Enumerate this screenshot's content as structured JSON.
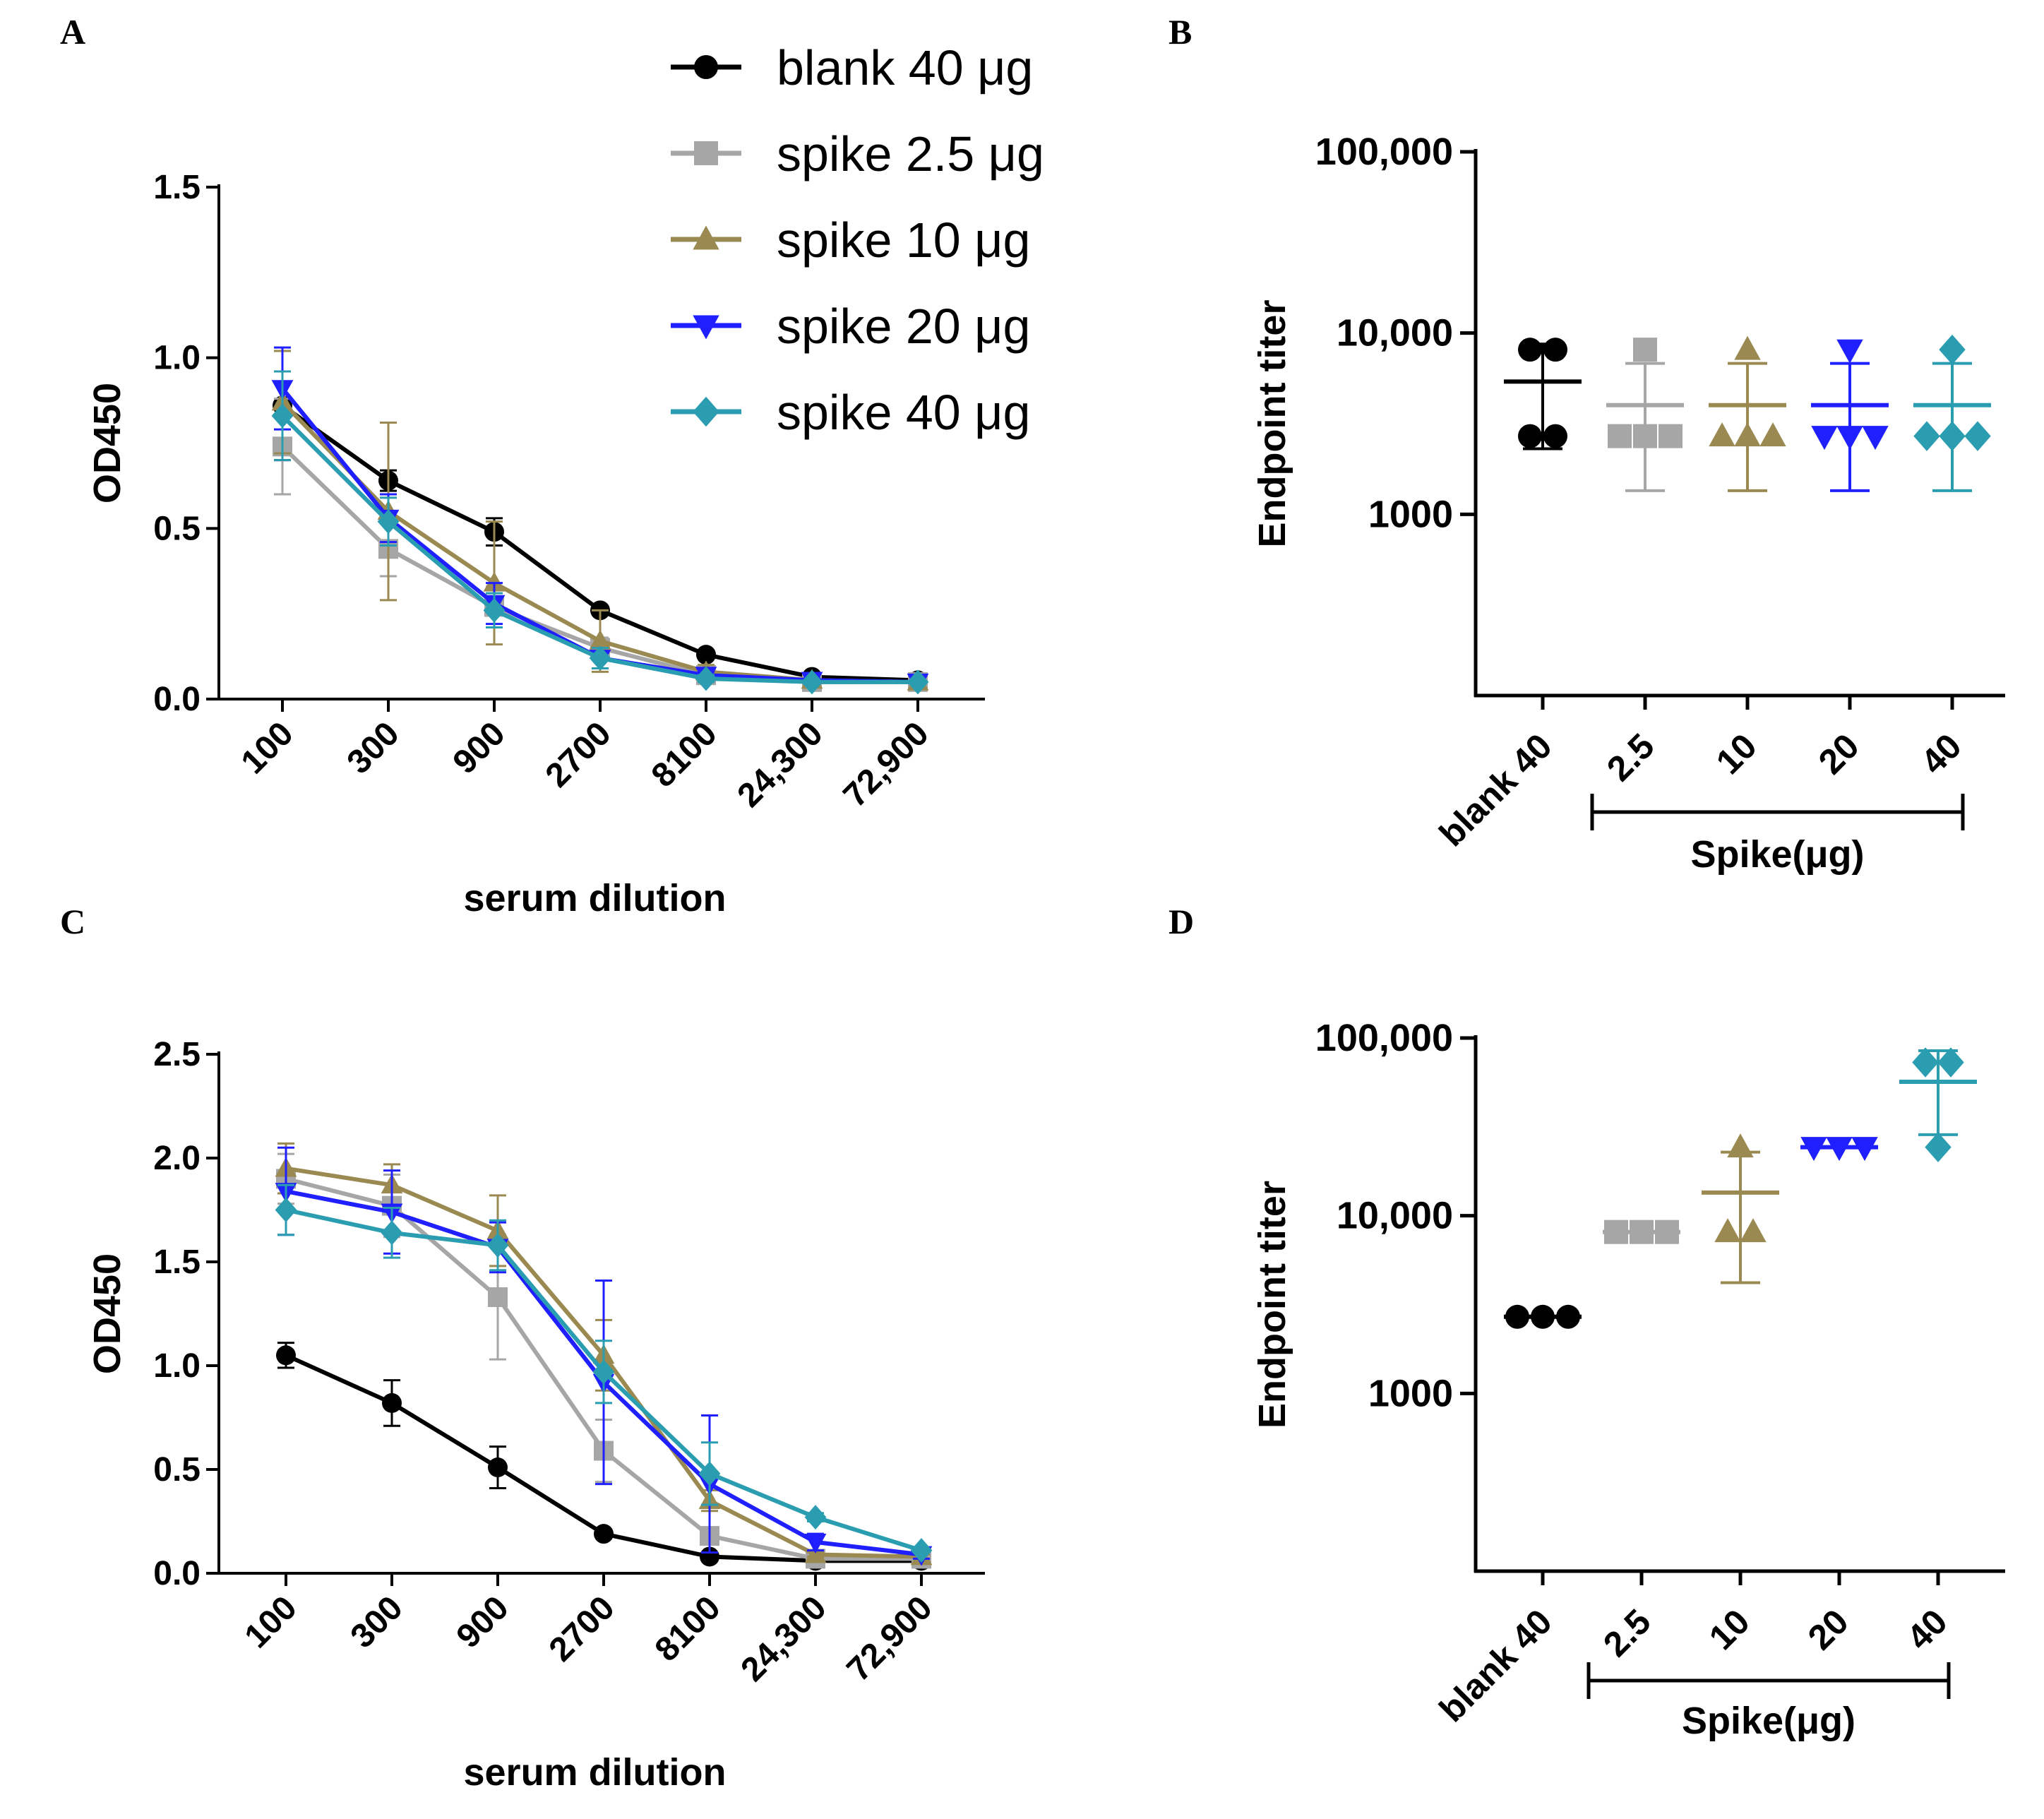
{
  "colors": {
    "blank": "#000000",
    "s25": "#a6a6a6",
    "s10": "#9a8a52",
    "s20": "#1f1fff",
    "s40": "#2a9db0"
  },
  "legend": {
    "entries": [
      {
        "label": "blank 40 μg",
        "key": "blank",
        "marker": "circle"
      },
      {
        "label": "spike 2.5 μg",
        "key": "s25",
        "marker": "square"
      },
      {
        "label": "spike 10 μg",
        "key": "s10",
        "marker": "triangle"
      },
      {
        "label": "spike 20 μg",
        "key": "s20",
        "marker": "tridown"
      },
      {
        "label": "spike 40 μg",
        "key": "s40",
        "marker": "diamond"
      }
    ]
  },
  "chart_data": [
    {
      "panel": "A",
      "type": "line",
      "xlabel": "serum dilution",
      "ylabel": "OD450",
      "categories": [
        "100",
        "300",
        "900",
        "2700",
        "8100",
        "24,300",
        "72,900"
      ],
      "ylim": [
        0,
        1.5
      ],
      "yticks": [
        0,
        0.5,
        1.0,
        1.5
      ],
      "ytick_labels": [
        "0.0",
        "0.5",
        "1.0",
        "1.5"
      ],
      "series": [
        {
          "name": "blank 40 μg",
          "key": "blank",
          "marker": "circle",
          "values": [
            0.86,
            0.64,
            0.49,
            0.26,
            0.13,
            0.065,
            0.055
          ],
          "errors": [
            0.16,
            0.03,
            0.04,
            0.01,
            0.01,
            0.005,
            0.005
          ]
        },
        {
          "name": "spike 2.5 μg",
          "key": "s25",
          "marker": "square",
          "values": [
            0.74,
            0.44,
            0.27,
            0.15,
            0.07,
            0.05,
            0.05
          ],
          "errors": [
            0.14,
            0.08,
            0.06,
            0.03,
            0.01,
            0.005,
            0.005
          ]
        },
        {
          "name": "spike 10 μg",
          "key": "s10",
          "marker": "triangle",
          "values": [
            0.87,
            0.55,
            0.34,
            0.17,
            0.08,
            0.055,
            0.05
          ],
          "errors": [
            0.15,
            0.26,
            0.18,
            0.09,
            0.02,
            0.005,
            0.005
          ]
        },
        {
          "name": "spike 20 μg",
          "key": "s20",
          "marker": "tridown",
          "values": [
            0.91,
            0.53,
            0.28,
            0.12,
            0.07,
            0.055,
            0.05
          ],
          "errors": [
            0.12,
            0.07,
            0.06,
            0.03,
            0.01,
            0.005,
            0.005
          ]
        },
        {
          "name": "spike 40 μg",
          "key": "s40",
          "marker": "diamond",
          "values": [
            0.83,
            0.52,
            0.26,
            0.12,
            0.06,
            0.05,
            0.05
          ],
          "errors": [
            0.13,
            0.07,
            0.05,
            0.03,
            0.01,
            0.005,
            0.005
          ]
        }
      ]
    },
    {
      "panel": "B",
      "type": "scatter",
      "ylabel": "Endpoint titer",
      "yscale": "log",
      "ylim": [
        100,
        100000
      ],
      "yticks": [
        1000,
        10000,
        100000
      ],
      "ytick_labels": [
        "1000",
        "10,000",
        "100,000"
      ],
      "categories": [
        "blank 40",
        "2.5",
        "10",
        "20",
        "40"
      ],
      "group_label": "Spike(μg)",
      "groups": [
        {
          "key": "blank",
          "marker": "circle",
          "points": [
            8100,
            8100,
            2700,
            2700
          ],
          "mean": 5400,
          "sd_low": 2300,
          "sd_high": 8700
        },
        {
          "key": "s25",
          "marker": "square",
          "points": [
            8100,
            2700,
            2700,
            2700
          ],
          "mean": 4000,
          "sd_low": 1350,
          "sd_high": 6800
        },
        {
          "key": "s10",
          "marker": "triangle",
          "points": [
            8100,
            2700,
            2700,
            2700
          ],
          "mean": 4000,
          "sd_low": 1350,
          "sd_high": 6800
        },
        {
          "key": "s20",
          "marker": "tridown",
          "points": [
            8100,
            2700,
            2700,
            2700
          ],
          "mean": 4000,
          "sd_low": 1350,
          "sd_high": 6800
        },
        {
          "key": "s40",
          "marker": "diamond",
          "points": [
            8100,
            2700,
            2700,
            2700
          ],
          "mean": 4000,
          "sd_low": 1350,
          "sd_high": 6800
        }
      ]
    },
    {
      "panel": "C",
      "type": "line",
      "xlabel": "serum dilution",
      "ylabel": "OD450",
      "categories": [
        "100",
        "300",
        "900",
        "2700",
        "8100",
        "24,300",
        "72,900"
      ],
      "ylim": [
        0,
        2.5
      ],
      "yticks": [
        0,
        0.5,
        1.0,
        1.5,
        2.0,
        2.5
      ],
      "ytick_labels": [
        "0.0",
        "0.5",
        "1.0",
        "1.5",
        "2.0",
        "2.5"
      ],
      "series": [
        {
          "name": "blank 40 μg",
          "key": "blank",
          "marker": "circle",
          "values": [
            1.05,
            0.82,
            0.51,
            0.19,
            0.08,
            0.06,
            0.06
          ],
          "errors": [
            0.06,
            0.11,
            0.1,
            0.02,
            0.01,
            0.01,
            0.01
          ]
        },
        {
          "name": "spike 2.5 μg",
          "key": "s25",
          "marker": "square",
          "values": [
            1.9,
            1.77,
            1.33,
            0.59,
            0.18,
            0.07,
            0.07
          ],
          "errors": [
            0.12,
            0.15,
            0.3,
            0.15,
            0.04,
            0.01,
            0.01
          ]
        },
        {
          "name": "spike 10 μg",
          "key": "s10",
          "marker": "triangle",
          "values": [
            1.95,
            1.87,
            1.65,
            1.05,
            0.35,
            0.09,
            0.08
          ],
          "errors": [
            0.12,
            0.1,
            0.17,
            0.17,
            0.05,
            0.01,
            0.01
          ]
        },
        {
          "name": "spike 20 μg",
          "key": "s20",
          "marker": "tridown",
          "values": [
            1.84,
            1.74,
            1.57,
            0.92,
            0.43,
            0.15,
            0.09
          ],
          "errors": [
            0.21,
            0.2,
            0.12,
            0.49,
            0.33,
            0.04,
            0.02
          ]
        },
        {
          "name": "spike 40 μg",
          "key": "s40",
          "marker": "diamond",
          "values": [
            1.75,
            1.64,
            1.58,
            0.97,
            0.48,
            0.27,
            0.11
          ],
          "errors": [
            0.12,
            0.12,
            0.12,
            0.15,
            0.15,
            0.02,
            0.01
          ]
        }
      ]
    },
    {
      "panel": "D",
      "type": "scatter",
      "ylabel": "Endpoint titer",
      "yscale": "log",
      "ylim": [
        100,
        100000
      ],
      "yticks": [
        1000,
        10000,
        100000
      ],
      "ytick_labels": [
        "1000",
        "10,000",
        "100,000"
      ],
      "categories": [
        "blank 40",
        "2.5",
        "10",
        "20",
        "40"
      ],
      "group_label": "Spike(μg)",
      "groups": [
        {
          "key": "blank",
          "marker": "circle",
          "points": [
            2700,
            2700,
            2700
          ],
          "mean": 2700,
          "sd_low": 2700,
          "sd_high": 2700
        },
        {
          "key": "s25",
          "marker": "square",
          "points": [
            8100,
            8100,
            8100
          ],
          "mean": 8100,
          "sd_low": 8100,
          "sd_high": 8100
        },
        {
          "key": "s10",
          "marker": "triangle",
          "points": [
            24300,
            8100,
            8100
          ],
          "mean": 13500,
          "sd_low": 4200,
          "sd_high": 22800
        },
        {
          "key": "s20",
          "marker": "tridown",
          "points": [
            24300,
            24300,
            24300
          ],
          "mean": 24300,
          "sd_low": 24300,
          "sd_high": 24300
        },
        {
          "key": "s40",
          "marker": "diamond",
          "points": [
            72900,
            72900,
            24300
          ],
          "mean": 56700,
          "sd_low": 28600,
          "sd_high": 84800
        }
      ]
    }
  ],
  "panel_letters": [
    "A",
    "B",
    "C",
    "D"
  ]
}
